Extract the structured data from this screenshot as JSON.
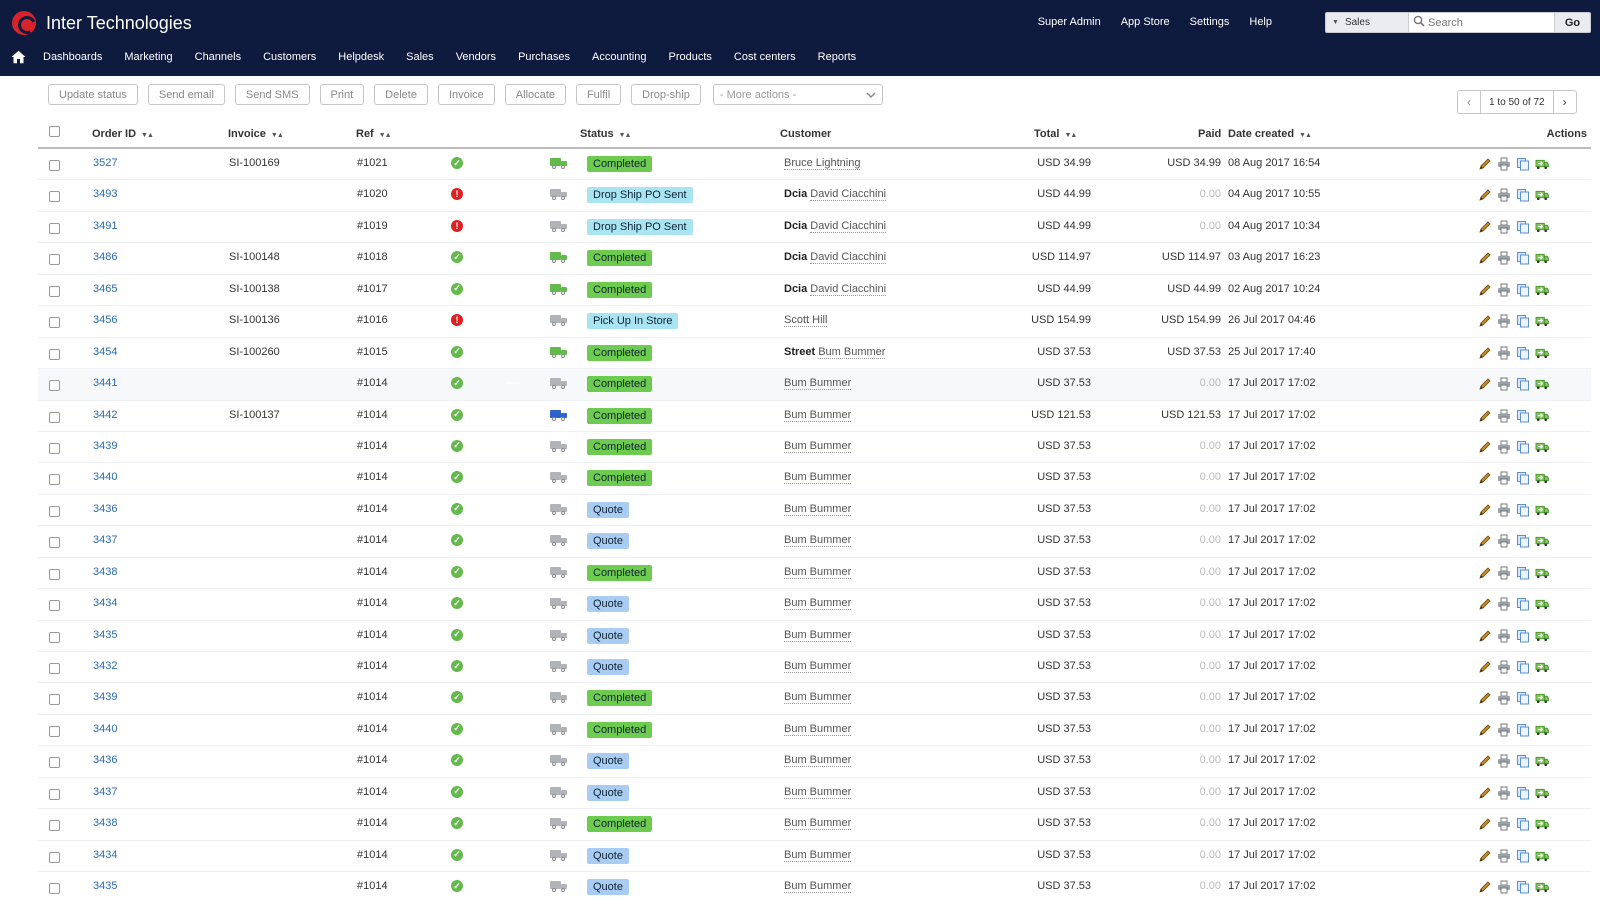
{
  "app": {
    "brand": "Inter Technologies"
  },
  "header": {
    "top_links": [
      "Super Admin",
      "App Store",
      "Settings",
      "Help"
    ],
    "search": {
      "scope": "Sales",
      "placeholder": "Search",
      "go_label": "Go"
    },
    "nav": [
      "Dashboards",
      "Marketing",
      "Channels",
      "Customers",
      "Helpdesk",
      "Sales",
      "Vendors",
      "Purchases",
      "Accounting",
      "Products",
      "Cost centers",
      "Reports"
    ]
  },
  "toolbar": {
    "buttons": [
      "Update status",
      "Send email",
      "Send SMS",
      "Print",
      "Delete",
      "Invoice",
      "Allocate",
      "Fulfil",
      "Drop-ship"
    ],
    "more_actions": "- More actions -"
  },
  "pagination": {
    "text": "1 to 50 of 72"
  },
  "table": {
    "headers": {
      "order_id": "Order ID",
      "invoice": "Invoice",
      "ref": "Ref",
      "status": "Status",
      "customer": "Customer",
      "total": "Total",
      "paid": "Paid",
      "date_created": "Date created",
      "actions": "Actions"
    },
    "status_colors": {
      "Completed": "#6dcb4f",
      "Quote": "#a9ccf2",
      "Drop Ship PO Sent": "#a8e4f2",
      "Pick Up In Store": "#a8e4f2"
    },
    "icon_colors": {
      "ok": "#63b94b",
      "error": "#e02020",
      "active": "#63b94b",
      "inactive": "#b0b3b8",
      "shipped_blue": "#2e63c9"
    },
    "rows": [
      {
        "order_id": "3527",
        "invoice": "SI-100169",
        "ref": "#1021",
        "payment": "ok",
        "fulfil": "active",
        "ship": "active",
        "status": "Completed",
        "company": "",
        "customer": "Bruce Lightning",
        "total": "USD 34.99",
        "paid": "USD 34.99",
        "date": "08 Aug 2017 16:54"
      },
      {
        "order_id": "3493",
        "invoice": "",
        "ref": "#1020",
        "payment": "error",
        "fulfil": "inactive",
        "ship": "inactive",
        "status": "Drop Ship PO Sent",
        "company": "Dcia",
        "customer": "David Ciacchini",
        "total": "USD 44.99",
        "paid": "0.00",
        "date": "04 Aug 2017 10:55"
      },
      {
        "order_id": "3491",
        "invoice": "",
        "ref": "#1019",
        "payment": "error",
        "fulfil": "inactive",
        "ship": "inactive",
        "status": "Drop Ship PO Sent",
        "company": "Dcia",
        "customer": "David Ciacchini",
        "total": "USD 44.99",
        "paid": "0.00",
        "date": "04 Aug 2017 10:34"
      },
      {
        "order_id": "3486",
        "invoice": "SI-100148",
        "ref": "#1018",
        "payment": "ok",
        "fulfil": "active",
        "ship": "active",
        "status": "Completed",
        "company": "Dcia",
        "customer": "David Ciacchini",
        "total": "USD 114.97",
        "paid": "USD 114.97",
        "date": "03 Aug 2017 16:23"
      },
      {
        "order_id": "3465",
        "invoice": "SI-100138",
        "ref": "#1017",
        "payment": "ok",
        "fulfil": "active",
        "ship": "active",
        "status": "Completed",
        "company": "Dcia",
        "customer": "David Ciacchini",
        "total": "USD 44.99",
        "paid": "USD 44.99",
        "date": "02 Aug 2017 10:24"
      },
      {
        "order_id": "3456",
        "invoice": "SI-100136",
        "ref": "#1016",
        "payment": "error",
        "fulfil": "inactive",
        "ship": "inactive",
        "status": "Pick Up In Store",
        "company": "",
        "customer": "Scott Hill",
        "total": "USD 154.99",
        "paid": "USD 154.99",
        "date": "26 Jul 2017 04:46"
      },
      {
        "order_id": "3454",
        "invoice": "SI-100260",
        "ref": "#1015",
        "payment": "ok",
        "fulfil": "active",
        "ship": "active",
        "status": "Completed",
        "company": "Street",
        "customer": "Bum Bummer",
        "total": "USD 37.53",
        "paid": "USD 37.53",
        "date": "25 Jul 2017 17:40"
      },
      {
        "order_id": "3441",
        "invoice": "",
        "ref": "#1014",
        "payment": "ok",
        "fulfil": "active",
        "ship": "inactive",
        "status": "Completed",
        "company": "",
        "customer": "Bum Bummer",
        "total": "USD 37.53",
        "paid": "0.00",
        "date": "17 Jul 2017 17:02"
      },
      {
        "order_id": "3442",
        "invoice": "SI-100137",
        "ref": "#1014",
        "payment": "ok",
        "fulfil": "active",
        "ship": "shipped_blue",
        "status": "Completed",
        "company": "",
        "customer": "Bum Bummer",
        "total": "USD 121.53",
        "paid": "USD 121.53",
        "date": "17 Jul 2017 17:02"
      },
      {
        "order_id": "3439",
        "invoice": "",
        "ref": "#1014",
        "payment": "ok",
        "fulfil": "active",
        "ship": "inactive",
        "status": "Completed",
        "company": "",
        "customer": "Bum Bummer",
        "total": "USD 37.53",
        "paid": "0.00",
        "date": "17 Jul 2017 17:02"
      },
      {
        "order_id": "3440",
        "invoice": "",
        "ref": "#1014",
        "payment": "ok",
        "fulfil": "active",
        "ship": "inactive",
        "status": "Completed",
        "company": "",
        "customer": "Bum Bummer",
        "total": "USD 37.53",
        "paid": "0.00",
        "date": "17 Jul 2017 17:02"
      },
      {
        "order_id": "3436",
        "invoice": "",
        "ref": "#1014",
        "payment": "ok",
        "fulfil": "active",
        "ship": "inactive",
        "status": "Quote",
        "company": "",
        "customer": "Bum Bummer",
        "total": "USD 37.53",
        "paid": "0.00",
        "date": "17 Jul 2017 17:02"
      },
      {
        "order_id": "3437",
        "invoice": "",
        "ref": "#1014",
        "payment": "ok",
        "fulfil": "active",
        "ship": "inactive",
        "status": "Quote",
        "company": "",
        "customer": "Bum Bummer",
        "total": "USD 37.53",
        "paid": "0.00",
        "date": "17 Jul 2017 17:02"
      },
      {
        "order_id": "3438",
        "invoice": "",
        "ref": "#1014",
        "payment": "ok",
        "fulfil": "active",
        "ship": "inactive",
        "status": "Completed",
        "company": "",
        "customer": "Bum Bummer",
        "total": "USD 37.53",
        "paid": "0.00",
        "date": "17 Jul 2017 17:02"
      },
      {
        "order_id": "3434",
        "invoice": "",
        "ref": "#1014",
        "payment": "ok",
        "fulfil": "active",
        "ship": "inactive",
        "status": "Quote",
        "company": "",
        "customer": "Bum Bummer",
        "total": "USD 37.53",
        "paid": "0.00",
        "date": "17 Jul 2017 17:02"
      },
      {
        "order_id": "3435",
        "invoice": "",
        "ref": "#1014",
        "payment": "ok",
        "fulfil": "active",
        "ship": "inactive",
        "status": "Quote",
        "company": "",
        "customer": "Bum Bummer",
        "total": "USD 37.53",
        "paid": "0.00",
        "date": "17 Jul 2017 17:02"
      },
      {
        "order_id": "3432",
        "invoice": "",
        "ref": "#1014",
        "payment": "ok",
        "fulfil": "active",
        "ship": "inactive",
        "status": "Quote",
        "company": "",
        "customer": "Bum Bummer",
        "total": "USD 37.53",
        "paid": "0.00",
        "date": "17 Jul 2017 17:02"
      },
      {
        "order_id": "3439",
        "invoice": "",
        "ref": "#1014",
        "payment": "ok",
        "fulfil": "active",
        "ship": "inactive",
        "status": "Completed",
        "company": "",
        "customer": "Bum Bummer",
        "total": "USD 37.53",
        "paid": "0.00",
        "date": "17 Jul 2017 17:02"
      },
      {
        "order_id": "3440",
        "invoice": "",
        "ref": "#1014",
        "payment": "ok",
        "fulfil": "active",
        "ship": "inactive",
        "status": "Completed",
        "company": "",
        "customer": "Bum Bummer",
        "total": "USD 37.53",
        "paid": "0.00",
        "date": "17 Jul 2017 17:02"
      },
      {
        "order_id": "3436",
        "invoice": "",
        "ref": "#1014",
        "payment": "ok",
        "fulfil": "active",
        "ship": "inactive",
        "status": "Quote",
        "company": "",
        "customer": "Bum Bummer",
        "total": "USD 37.53",
        "paid": "0.00",
        "date": "17 Jul 2017 17:02"
      },
      {
        "order_id": "3437",
        "invoice": "",
        "ref": "#1014",
        "payment": "ok",
        "fulfil": "active",
        "ship": "inactive",
        "status": "Quote",
        "company": "",
        "customer": "Bum Bummer",
        "total": "USD 37.53",
        "paid": "0.00",
        "date": "17 Jul 2017 17:02"
      },
      {
        "order_id": "3438",
        "invoice": "",
        "ref": "#1014",
        "payment": "ok",
        "fulfil": "active",
        "ship": "inactive",
        "status": "Completed",
        "company": "",
        "customer": "Bum Bummer",
        "total": "USD 37.53",
        "paid": "0.00",
        "date": "17 Jul 2017 17:02"
      },
      {
        "order_id": "3434",
        "invoice": "",
        "ref": "#1014",
        "payment": "ok",
        "fulfil": "active",
        "ship": "inactive",
        "status": "Quote",
        "company": "",
        "customer": "Bum Bummer",
        "total": "USD 37.53",
        "paid": "0.00",
        "date": "17 Jul 2017 17:02"
      },
      {
        "order_id": "3435",
        "invoice": "",
        "ref": "#1014",
        "payment": "ok",
        "fulfil": "active",
        "ship": "inactive",
        "status": "Quote",
        "company": "",
        "customer": "Bum Bummer",
        "total": "USD 37.53",
        "paid": "0.00",
        "date": "17 Jul 2017 17:02"
      }
    ],
    "row_actions": [
      "pencil-icon",
      "print-icon",
      "copy-icon",
      "ship-icon"
    ]
  }
}
